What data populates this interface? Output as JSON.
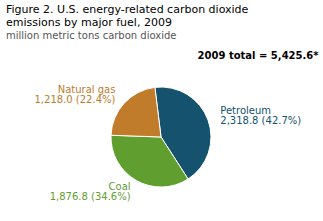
{
  "chart_data": {
    "type": "pie",
    "title": "Figure 2. U.S. energy-related carbon dioxide\nemissions by major fuel, 2009",
    "subtitle": "million metric tons carbon dioxide",
    "annotations": [
      "2009 total = 5,425.6*"
    ],
    "categories": [
      "Petroleum",
      "Coal",
      "Natural gas"
    ],
    "values": [
      2318.8,
      1876.8,
      1218.0
    ],
    "value_labels": [
      "2,318.8 (42.7%)",
      "1,876.8 (34.6%)",
      "1,218.0 (22.4%)"
    ],
    "colors": [
      "#14526e",
      "#5f9e2f",
      "#c07c2b"
    ],
    "data_labels": true
  }
}
